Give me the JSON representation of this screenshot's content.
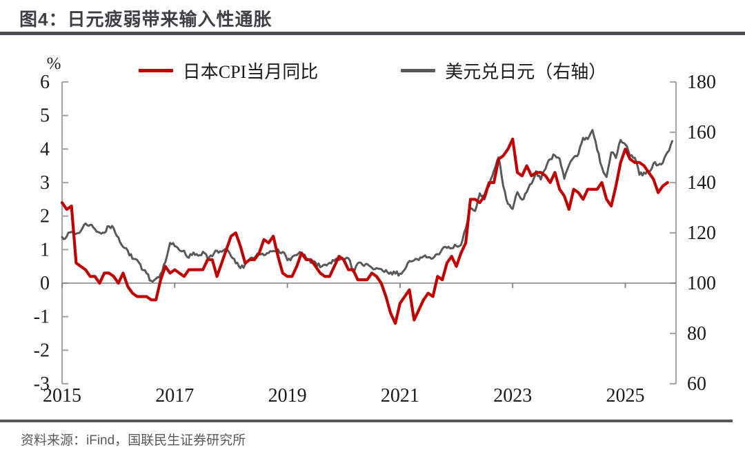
{
  "figure": {
    "title": "图4：日元疲弱带来输入性通胀",
    "source": "资料来源：iFind，国联民生证券研究所"
  },
  "legend": [
    {
      "label": "日本CPI当月同比",
      "color": "#c00000"
    },
    {
      "label": "美元兑日元（右轴）",
      "color": "#595959"
    }
  ],
  "colors": {
    "cpi_red": "#c00000",
    "usdjpy_gray": "#595959",
    "axis": "#a6a6a6",
    "zero_line": "#808080",
    "tick_text": "#1a1a1a"
  },
  "chart_data": {
    "type": "line",
    "title": "图4：日元疲弱带来输入性通胀",
    "x_unit": "year-month",
    "x_start_year": 2015,
    "x_start_month": 1,
    "x_interval_months": 1,
    "x_range": [
      2015,
      2025.9
    ],
    "x_ticks": [
      2015,
      2017,
      2019,
      2021,
      2023,
      2025
    ],
    "grid": false,
    "legend_position": "top-center",
    "left_axis": {
      "label": "%",
      "min": -3,
      "max": 6,
      "step": 1
    },
    "right_axis": {
      "label": "",
      "min": 60,
      "max": 180,
      "step": 20
    },
    "series": [
      {
        "name": "日本CPI当月同比",
        "axis": "left",
        "color": "#c00000",
        "values": [
          2.4,
          2.2,
          2.3,
          0.6,
          0.5,
          0.4,
          0.2,
          0.2,
          0.0,
          0.3,
          0.3,
          0.2,
          0.0,
          0.3,
          -0.1,
          -0.3,
          -0.4,
          -0.4,
          -0.4,
          -0.5,
          -0.5,
          0.1,
          0.5,
          0.3,
          0.4,
          0.3,
          0.2,
          0.4,
          0.4,
          0.4,
          0.4,
          0.7,
          0.7,
          0.2,
          0.6,
          1.0,
          1.4,
          1.5,
          1.1,
          0.6,
          0.7,
          0.7,
          0.9,
          1.3,
          1.2,
          1.4,
          0.8,
          0.3,
          0.2,
          0.2,
          0.5,
          0.9,
          0.7,
          0.7,
          0.5,
          0.3,
          0.2,
          0.2,
          0.5,
          0.8,
          0.7,
          0.4,
          0.4,
          0.1,
          0.1,
          0.1,
          0.3,
          0.2,
          0.0,
          -0.4,
          -0.9,
          -1.2,
          -0.6,
          -0.4,
          -0.2,
          -1.1,
          -0.8,
          -0.5,
          -0.3,
          -0.4,
          0.2,
          0.1,
          0.6,
          0.8,
          0.5,
          0.9,
          1.2,
          2.5,
          2.5,
          2.4,
          2.6,
          3.0,
          3.0,
          3.7,
          3.8,
          4.0,
          4.3,
          3.3,
          3.2,
          3.5,
          3.2,
          3.3,
          3.3,
          3.2,
          3.0,
          3.3,
          2.8,
          2.6,
          2.2,
          2.8,
          2.7,
          2.5,
          2.8,
          2.8,
          2.8,
          3.0,
          2.5,
          2.3,
          2.9,
          3.6,
          4.0,
          3.7,
          3.6,
          3.6,
          3.5,
          3.3,
          3.1,
          2.7,
          2.9,
          3.0
        ]
      },
      {
        "name": "美元兑日元（右轴）",
        "axis": "right",
        "color": "#595959",
        "values": [
          118.3,
          118.6,
          120.4,
          119.6,
          120.8,
          123.7,
          123.2,
          121.5,
          120.1,
          120.0,
          122.6,
          121.8,
          118.2,
          114.4,
          112.9,
          109.7,
          109.2,
          105.4,
          103.9,
          100.9,
          101.8,
          103.8,
          108.3,
          116.0,
          114.7,
          113.1,
          112.9,
          110.1,
          112.2,
          110.9,
          112.5,
          109.9,
          110.7,
          112.9,
          112.5,
          112.9,
          110.7,
          107.9,
          106.0,
          107.5,
          109.7,
          110.0,
          111.4,
          111.1,
          112.0,
          112.8,
          113.4,
          112.4,
          109.1,
          110.4,
          111.2,
          111.6,
          109.9,
          108.1,
          108.2,
          106.3,
          107.4,
          108.1,
          108.9,
          109.2,
          109.3,
          109.9,
          104.5,
          107.9,
          107.3,
          107.6,
          106.1,
          106.0,
          105.6,
          105.2,
          104.3,
          103.8,
          103.8,
          105.4,
          108.8,
          109.1,
          109.2,
          110.6,
          110.3,
          109.9,
          111.5,
          113.6,
          114.0,
          113.9,
          114.8,
          115.2,
          121.7,
          129.9,
          128.7,
          135.7,
          133.3,
          138.7,
          144.7,
          150.0,
          138.5,
          131.5,
          129.5,
          136.2,
          133.2,
          136.2,
          139.5,
          144.5,
          141.2,
          145.5,
          149.3,
          150.8,
          149.5,
          141.5,
          146.9,
          150.0,
          151.3,
          157.8,
          157.3,
          160.9,
          153.0,
          146.2,
          142.2,
          152.0,
          149.8,
          156.9,
          155.2,
          150.6,
          149.9,
          143.1,
          144.0,
          144.3,
          147.6,
          147.0,
          147.9,
          152.1,
          156.5
        ]
      }
    ]
  }
}
